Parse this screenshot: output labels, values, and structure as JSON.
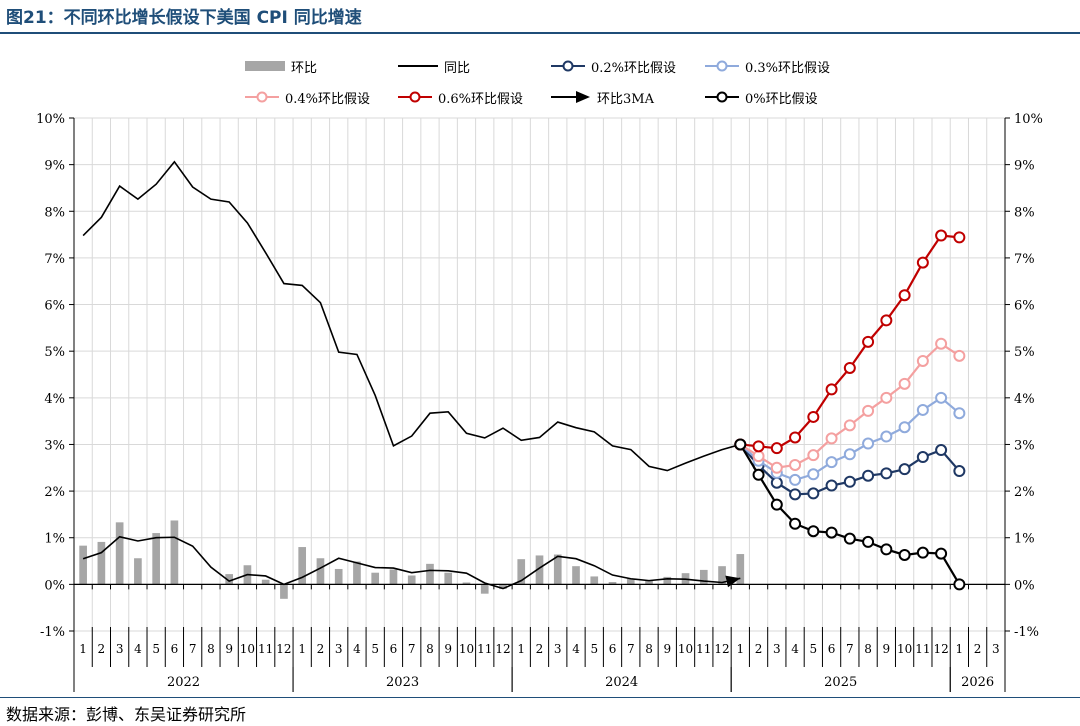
{
  "figure_title": "图21：不同环比增长假设下美国 CPI 同比增速",
  "source_note": "数据来源：彭博、东吴证券研究所",
  "colors": {
    "title": "#1f4e79",
    "mom_bar": "#a6a6a6",
    "yoy_line": "#000000",
    "s02": "#1f3864",
    "s03": "#8faadc",
    "s04": "#f4a0a0",
    "s06": "#c00000",
    "s00": "#000000",
    "grid": "#d9d9d9"
  },
  "chart_data": {
    "type": "line",
    "title": "",
    "ylim": [
      -1,
      10
    ],
    "y_ticks": [
      "-1%",
      "0%",
      "1%",
      "2%",
      "3%",
      "4%",
      "5%",
      "6%",
      "7%",
      "8%",
      "9%",
      "10%"
    ],
    "x_month_labels": [
      "1",
      "2",
      "3",
      "4",
      "5",
      "6",
      "7",
      "8",
      "9",
      "10",
      "11",
      "12",
      "1",
      "2",
      "3",
      "4",
      "5",
      "6",
      "7",
      "8",
      "9",
      "10",
      "11",
      "12",
      "1",
      "2",
      "3",
      "4",
      "5",
      "6",
      "7",
      "8",
      "9",
      "10",
      "11",
      "12",
      "1",
      "2",
      "3",
      "4",
      "5",
      "6",
      "7",
      "8",
      "9",
      "10",
      "11",
      "12",
      "1",
      "2",
      "3"
    ],
    "x_year_labels": [
      {
        "label": "2022",
        "start": 0,
        "end": 12
      },
      {
        "label": "2023",
        "start": 12,
        "end": 24
      },
      {
        "label": "2024",
        "start": 24,
        "end": 36
      },
      {
        "label": "2025",
        "start": 36,
        "end": 48
      },
      {
        "label": "2026",
        "start": 48,
        "end": 51
      }
    ],
    "legend": [
      {
        "key": "mom",
        "label": "环比",
        "style": "bar"
      },
      {
        "key": "yoy",
        "label": "同比",
        "style": "line"
      },
      {
        "key": "s02",
        "label": "0.2%环比假设",
        "style": "marker"
      },
      {
        "key": "s03",
        "label": "0.3%环比假设",
        "style": "marker"
      },
      {
        "key": "s04",
        "label": "0.4%环比假设",
        "style": "marker"
      },
      {
        "key": "s06",
        "label": "0.6%环比假设",
        "style": "marker"
      },
      {
        "key": "ma3",
        "label": "环比3MA",
        "style": "arrow"
      },
      {
        "key": "s00",
        "label": "0%环比假设",
        "style": "marker"
      }
    ],
    "mom_bars": [
      0.83,
      0.91,
      1.33,
      0.56,
      1.1,
      1.37,
      0.0,
      0.0,
      0.22,
      0.41,
      0.1,
      -0.31,
      0.8,
      0.56,
      0.33,
      0.49,
      0.25,
      0.32,
      0.19,
      0.44,
      0.25,
      0.04,
      -0.2,
      -0.1,
      0.54,
      0.62,
      0.64,
      0.39,
      0.17,
      0.05,
      0.12,
      0.08,
      0.16,
      0.24,
      0.31,
      0.39,
      0.65
    ],
    "yoy": [
      7.48,
      7.87,
      8.54,
      8.26,
      8.58,
      9.06,
      8.52,
      8.26,
      8.2,
      7.75,
      7.11,
      6.45,
      6.41,
      6.04,
      4.98,
      4.93,
      4.05,
      2.97,
      3.18,
      3.67,
      3.7,
      3.24,
      3.14,
      3.35,
      3.09,
      3.15,
      3.48,
      3.36,
      3.27,
      2.97,
      2.89,
      2.53,
      2.44,
      2.6,
      2.75,
      2.89,
      3.0
    ],
    "mom_3ma": [
      0.55,
      0.68,
      1.02,
      0.93,
      1.0,
      1.01,
      0.82,
      0.37,
      0.07,
      0.21,
      0.18,
      0.0,
      0.15,
      0.35,
      0.56,
      0.46,
      0.36,
      0.35,
      0.25,
      0.3,
      0.29,
      0.24,
      0.03,
      -0.09,
      0.08,
      0.35,
      0.6,
      0.55,
      0.4,
      0.2,
      0.12,
      0.08,
      0.12,
      0.11,
      0.07,
      0.04,
      0.13
    ],
    "scenario_x_start": 36,
    "scenarios": {
      "s02": [
        3.0,
        2.55,
        2.18,
        1.93,
        1.95,
        2.12,
        2.2,
        2.33,
        2.38,
        2.47,
        2.73,
        2.88,
        2.43
      ],
      "s03": [
        3.0,
        2.65,
        2.39,
        2.24,
        2.36,
        2.62,
        2.79,
        3.02,
        3.17,
        3.37,
        3.74,
        4.0,
        3.67
      ],
      "s04": [
        3.0,
        2.75,
        2.5,
        2.56,
        2.77,
        3.13,
        3.41,
        3.72,
        4.0,
        4.3,
        4.79,
        5.16,
        4.9
      ],
      "s06": [
        3.0,
        2.96,
        2.92,
        3.15,
        3.59,
        4.18,
        4.64,
        5.2,
        5.66,
        6.2,
        6.9,
        7.48,
        7.44
      ],
      "s00": [
        3.0,
        2.35,
        1.71,
        1.3,
        1.14,
        1.11,
        0.98,
        0.91,
        0.75,
        0.63,
        0.68,
        0.66,
        0.0
      ]
    }
  }
}
